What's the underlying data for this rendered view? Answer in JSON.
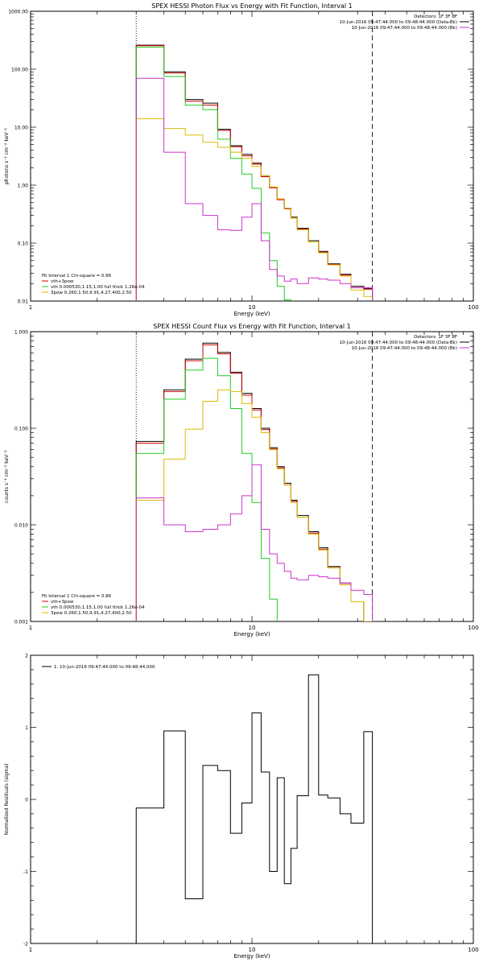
{
  "chart_data": [
    {
      "type": "line",
      "title": "SPEX HESSI Photon Flux vs Energy with Fit Function, Interval 1",
      "xlabel": "Energy (keV)",
      "ylabel": "photons s⁻¹ cm⁻² keV⁻¹",
      "xscale": "log",
      "yscale": "log",
      "xlim": [
        1,
        100
      ],
      "ylim": [
        0.01,
        1000
      ],
      "xtick_labels": [
        "1",
        "10",
        "100"
      ],
      "ytick_labels": [
        "0.01",
        "0.10",
        "1.00",
        "10.00",
        "100.00",
        "1000.00"
      ],
      "legend_top": [
        "Detectors: 1F 3F 8F",
        "10-Jun-2016 09:47:44.000 to 09:48:44.000 (Data-Bk)",
        "10-Jun-2016 09:47:44.000 to 09:48:44.000 (Bk)"
      ],
      "legend_bottom_title": "Fit Interval 1    Chi-square = 0.86",
      "legend_bottom": [
        {
          "label": "vth+3pow",
          "color": "#cc0000"
        },
        {
          "label": "vth 0.000530,1.15,1.00  full thick 1.26e-04",
          "color": "#22cc22"
        },
        {
          "label": "3pow 0.260,1.50,9.91,4.27,400,2.50",
          "color": "#ddbb00"
        }
      ],
      "vlines": [
        {
          "x": 3.0,
          "style": "dotted"
        },
        {
          "x": 35.0,
          "style": "dashed"
        }
      ],
      "edges": [
        3.0,
        4.0,
        5.0,
        6.0,
        7.0,
        8.0,
        9.0,
        10.0,
        11.0,
        12.0,
        13.0,
        14.0,
        15.0,
        16.0,
        18.0,
        20.0,
        22.0,
        25.0,
        28.0,
        32.0,
        35.0
      ],
      "series": [
        {
          "name": "Data-Bk",
          "color": "#000000",
          "values": [
            260,
            90,
            30,
            26,
            9.2,
            4.8,
            3.4,
            2.4,
            1.45,
            0.92,
            0.58,
            0.4,
            0.28,
            0.18,
            0.11,
            0.072,
            0.044,
            0.029,
            0.018,
            0.0165
          ]
        },
        {
          "name": "vth+3pow",
          "color": "#cc0000",
          "values": [
            255,
            86,
            28,
            24,
            8.8,
            4.6,
            3.2,
            2.3,
            1.4,
            0.9,
            0.56,
            0.39,
            0.27,
            0.175,
            0.105,
            0.07,
            0.043,
            0.028,
            0.017,
            0.016
          ]
        },
        {
          "name": "vth 0.000530,1.15,1.00  full thick 1.26e-04",
          "color": "#22cc22",
          "values": [
            240,
            75,
            24,
            20,
            6.2,
            2.9,
            1.55,
            0.88,
            0.15,
            0.05,
            0.018,
            0.0105
          ]
        },
        {
          "name": "3pow 0.260,1.50,9.91,4.27,400,2.50",
          "color": "#ddbb00",
          "values": [
            14,
            9.5,
            7.3,
            5.5,
            4.5,
            3.7,
            2.9,
            2.1,
            1.45,
            0.93,
            0.58,
            0.4,
            0.27,
            0.17,
            0.105,
            0.068,
            0.042,
            0.027,
            0.0155,
            0.012
          ]
        },
        {
          "name": "Bk",
          "color": "#cc33cc",
          "values": [
            70,
            3.7,
            0.48,
            0.3,
            0.17,
            0.165,
            0.28,
            0.48,
            0.11,
            0.035,
            0.027,
            0.022,
            0.024,
            0.02,
            0.025,
            0.024,
            0.023,
            0.02,
            0.017,
            0.017
          ]
        }
      ]
    },
    {
      "type": "line",
      "title": "SPEX HESSI Count Flux vs Energy with Fit Function, Interval 1",
      "xlabel": "Energy (keV)",
      "ylabel": "counts s⁻¹ cm⁻² keV⁻¹",
      "xscale": "log",
      "yscale": "log",
      "xlim": [
        1,
        100
      ],
      "ylim": [
        0.001,
        1
      ],
      "xtick_labels": [
        "1",
        "10",
        "100"
      ],
      "ytick_labels": [
        "0.001",
        "0.010",
        "0.100",
        "1.000"
      ],
      "legend_top": [
        "Detectors: 1F 3F 8F",
        "10-Jun-2016 09:47:44.000 to 09:48:44.000 (Data-Bk)",
        "10-Jun-2016 09:47:44.000 to 09:48:44.000 (Bk)"
      ],
      "legend_bottom_title": "Fit Interval 1    Chi-square = 0.86",
      "legend_bottom": [
        {
          "label": "vth+3pow",
          "color": "#cc0000"
        },
        {
          "label": "vth 0.000530,1.15,1.00  full thick 1.26e-04",
          "color": "#22cc22"
        },
        {
          "label": "3pow 0.260,1.50,9.91,4.27,400,2.50",
          "color": "#ddbb00"
        }
      ],
      "vlines": [
        {
          "x": 3.0,
          "style": "dotted"
        },
        {
          "x": 35.0,
          "style": "dashed"
        }
      ],
      "edges": [
        3.0,
        4.0,
        5.0,
        6.0,
        7.0,
        8.0,
        9.0,
        10.0,
        11.0,
        12.0,
        13.0,
        14.0,
        15.0,
        16.0,
        18.0,
        20.0,
        22.0,
        25.0,
        28.0,
        32.0,
        35.0,
        38.0
      ],
      "series": [
        {
          "name": "Data-Bk",
          "color": "#000000",
          "values": [
            0.073,
            0.25,
            0.52,
            0.76,
            0.61,
            0.38,
            0.23,
            0.16,
            0.1,
            0.063,
            0.04,
            0.027,
            0.018,
            0.0125,
            0.0085,
            0.0058,
            0.0037,
            0.0025,
            0.0016,
            0.001,
            0.0006
          ]
        },
        {
          "name": "vth+3pow",
          "color": "#cc0000",
          "values": [
            0.07,
            0.24,
            0.5,
            0.73,
            0.59,
            0.37,
            0.22,
            0.155,
            0.097,
            0.061,
            0.039,
            0.026,
            0.0175,
            0.012,
            0.0082,
            0.0056,
            0.0036,
            0.0024,
            0.0016,
            0.001,
            0.0006
          ]
        },
        {
          "name": "vth 0.000530,1.15,1.00  full thick 1.26e-04",
          "color": "#22cc22",
          "values": [
            0.055,
            0.2,
            0.4,
            0.53,
            0.35,
            0.16,
            0.055,
            0.017,
            0.0045,
            0.0017,
            0.0008
          ]
        },
        {
          "name": "3pow 0.260,1.50,9.91,4.27,400,2.50",
          "color": "#ddbb00",
          "values": [
            0.018,
            0.048,
            0.098,
            0.19,
            0.25,
            0.24,
            0.18,
            0.13,
            0.09,
            0.06,
            0.038,
            0.026,
            0.017,
            0.012,
            0.008,
            0.0055,
            0.0036,
            0.0024,
            0.0016,
            0.001,
            0.0006
          ]
        },
        {
          "name": "Bk",
          "color": "#cc33cc",
          "values": [
            0.019,
            0.01,
            0.0085,
            0.009,
            0.01,
            0.013,
            0.02,
            0.042,
            0.009,
            0.005,
            0.004,
            0.0033,
            0.0028,
            0.0027,
            0.003,
            0.0029,
            0.0028,
            0.0025,
            0.0021,
            0.0019
          ]
        }
      ]
    },
    {
      "type": "line",
      "title": "",
      "xlabel": "Energy (keV)",
      "ylabel": "Normalized Residuals (sigma)",
      "xscale": "log",
      "yscale": "linear",
      "xlim": [
        1,
        100
      ],
      "ylim": [
        -2,
        2
      ],
      "xtick_labels": [
        "1",
        "10",
        "100"
      ],
      "ytick_labels": [
        "-2",
        "-1",
        "0",
        "1",
        "2"
      ],
      "legend": "1. 10-Jun-2016 09:47:44.000 to 09:48:44.000",
      "edges": [
        3.0,
        4.0,
        5.0,
        6.0,
        7.0,
        8.0,
        9.0,
        10.0,
        11.0,
        12.0,
        13.0,
        14.0,
        15.0,
        16.0,
        18.0,
        20.0,
        22.0,
        25.0,
        28.0,
        32.0,
        35.0
      ],
      "series": [
        {
          "name": "1. 10-Jun-2016 09:47:44.000 to 09:48:44.000",
          "color": "#000000",
          "values": [
            -0.12,
            0.95,
            -1.38,
            0.47,
            0.4,
            -0.47,
            -0.05,
            1.2,
            0.38,
            -1.0,
            0.3,
            -1.17,
            -0.68,
            0.05,
            1.73,
            0.06,
            0.02,
            -0.2,
            -0.33,
            0.94
          ]
        }
      ]
    }
  ]
}
